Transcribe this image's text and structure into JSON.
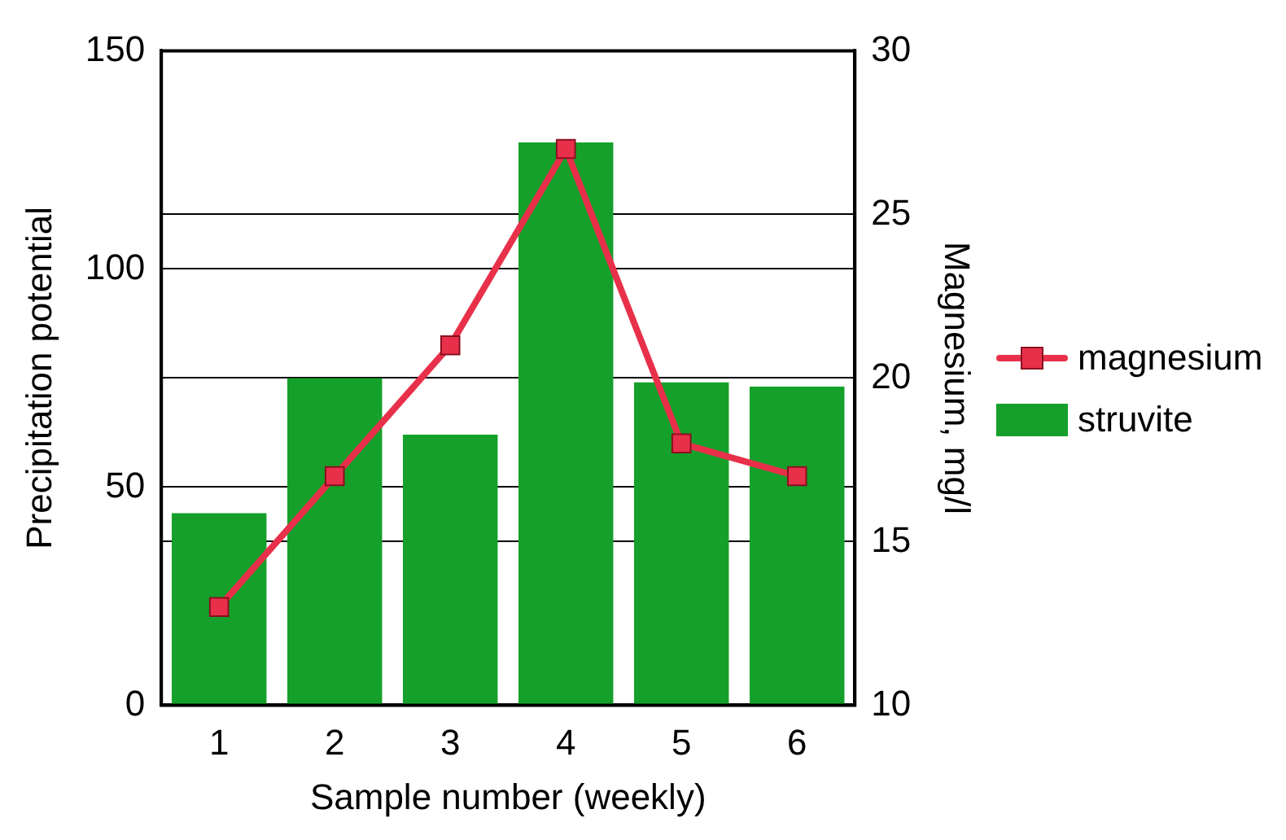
{
  "chart_data": {
    "type": "bar",
    "xlabel": "Sample number (weekly)",
    "ylabel": "Precipitation potential",
    "y2label": "Magnesium, mg/l",
    "categories": [
      "1",
      "2",
      "3",
      "4",
      "5",
      "6"
    ],
    "series": [
      {
        "name": "magnesium",
        "type": "line",
        "axis": "y2",
        "color": "#e8304a",
        "marker": "square",
        "values": [
          13,
          17,
          21,
          27,
          18,
          17
        ]
      },
      {
        "name": "struvite",
        "color": "#14a02a",
        "values": [
          44,
          75,
          62,
          129,
          74,
          73
        ]
      }
    ],
    "ylim": [
      0,
      150
    ],
    "yticks": [
      0,
      50,
      100,
      150
    ],
    "y2lim": [
      10,
      30
    ],
    "y2ticks": [
      10,
      15,
      20,
      25,
      30
    ],
    "grid": "y",
    "legend": "right"
  }
}
